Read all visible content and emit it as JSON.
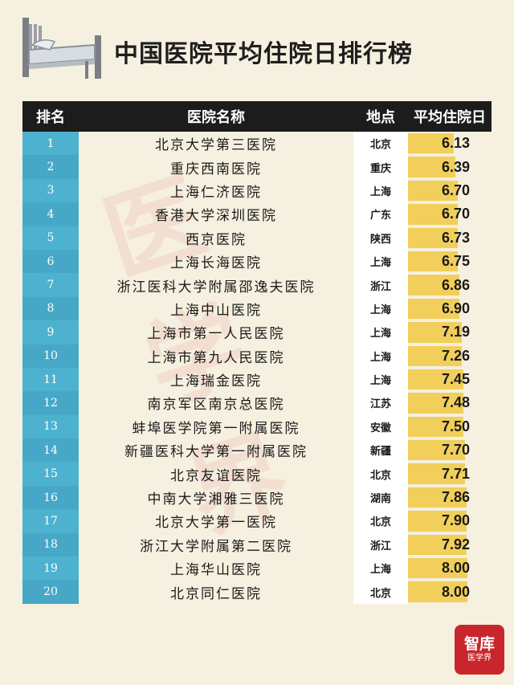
{
  "title": "中国医院平均住院日排行榜",
  "columns": {
    "rank": "排名",
    "name": "医院名称",
    "location": "地点",
    "avg_stay": "平均住院日"
  },
  "colors": {
    "background": "#f6f0e0",
    "header_bg": "#1c1c1c",
    "rank_bg": "#4db2cf",
    "bar": "#f1cf5a",
    "logo_bg": "#c9262c"
  },
  "watermark": "医学界",
  "logo": {
    "line1": "智库",
    "line2": "医学界"
  },
  "chart_data": {
    "type": "bar",
    "title": "中国医院平均住院日排行榜",
    "ylim": [
      0,
      8
    ],
    "rows": [
      {
        "rank": "1",
        "name": "北京大学第三医院",
        "location": "北京",
        "value": 6.13
      },
      {
        "rank": "2",
        "name": "重庆西南医院",
        "location": "重庆",
        "value": 6.39
      },
      {
        "rank": "3",
        "name": "上海仁济医院",
        "location": "上海",
        "value": 6.7
      },
      {
        "rank": "4",
        "name": "香港大学深圳医院",
        "location": "广东",
        "value": 6.7
      },
      {
        "rank": "5",
        "name": "西京医院",
        "location": "陕西",
        "value": 6.73
      },
      {
        "rank": "6",
        "name": "上海长海医院",
        "location": "上海",
        "value": 6.75
      },
      {
        "rank": "7",
        "name": "浙江医科大学附属邵逸夫医院",
        "location": "浙江",
        "value": 6.86
      },
      {
        "rank": "8",
        "name": "上海中山医院",
        "location": "上海",
        "value": 6.9
      },
      {
        "rank": "9",
        "name": "上海市第一人民医院",
        "location": "上海",
        "value": 7.19
      },
      {
        "rank": "10",
        "name": "上海市第九人民医院",
        "location": "上海",
        "value": 7.26
      },
      {
        "rank": "11",
        "name": "上海瑞金医院",
        "location": "上海",
        "value": 7.45
      },
      {
        "rank": "12",
        "name": "南京军区南京总医院",
        "location": "江苏",
        "value": 7.48
      },
      {
        "rank": "13",
        "name": "蚌埠医学院第一附属医院",
        "location": "安徽",
        "value": 7.5
      },
      {
        "rank": "14",
        "name": "新疆医科大学第一附属医院",
        "location": "新疆",
        "value": 7.7
      },
      {
        "rank": "15",
        "name": "北京友谊医院",
        "location": "北京",
        "value": 7.71
      },
      {
        "rank": "16",
        "name": "中南大学湘雅三医院",
        "location": "湖南",
        "value": 7.86
      },
      {
        "rank": "17",
        "name": "北京大学第一医院",
        "location": "北京",
        "value": 7.9
      },
      {
        "rank": "18",
        "name": "浙江大学附属第二医院",
        "location": "浙江",
        "value": 7.92
      },
      {
        "rank": "19",
        "name": "上海华山医院",
        "location": "上海",
        "value": 8.0
      },
      {
        "rank": "20",
        "name": "北京同仁医院",
        "location": "北京",
        "value": 8.0
      }
    ]
  }
}
